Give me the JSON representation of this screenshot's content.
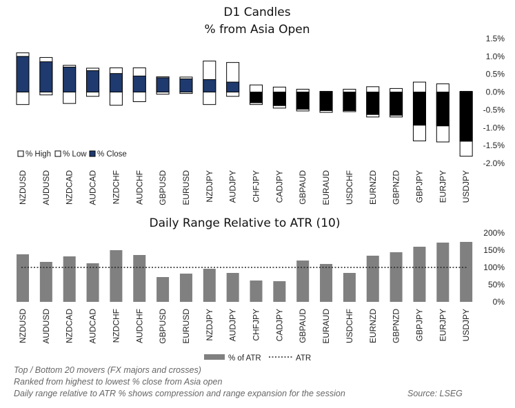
{
  "chart_data": [
    {
      "type": "candlestick",
      "title_lines": [
        "D1 Candles",
        "% from Asia Open"
      ],
      "categories": [
        "NZDUSD",
        "AUDUSD",
        "NZDCAD",
        "AUDCAD",
        "NZDCHF",
        "AUDCHF",
        "GBPUSD",
        "EURUSD",
        "NZDJPY",
        "AUDJPY",
        "CHFJPY",
        "CADJPY",
        "GBPAUD",
        "EURAUD",
        "USDCHF",
        "EURNZD",
        "GBPNZD",
        "GBPJPY",
        "EURJPY",
        "USDJPY"
      ],
      "series": [
        {
          "name": "% High",
          "values": [
            1.1,
            0.97,
            0.75,
            0.67,
            0.68,
            0.68,
            0.43,
            0.42,
            0.87,
            0.83,
            0.2,
            0.14,
            0.08,
            0.02,
            0.08,
            0.15,
            0.1,
            0.28,
            0.23,
            0.02
          ]
        },
        {
          "name": "% Low",
          "values": [
            -0.35,
            -0.08,
            -0.32,
            -0.12,
            -0.37,
            -0.27,
            -0.06,
            -0.04,
            -0.35,
            -0.12,
            -0.35,
            -0.45,
            -0.53,
            -0.57,
            -0.55,
            -0.7,
            -0.7,
            -1.37,
            -1.4,
            -1.8
          ]
        },
        {
          "name": "% Close",
          "values": [
            1.0,
            0.85,
            0.7,
            0.6,
            0.52,
            0.45,
            0.4,
            0.37,
            0.35,
            0.28,
            -0.3,
            -0.38,
            -0.48,
            -0.52,
            -0.52,
            -0.63,
            -0.65,
            -0.93,
            -0.95,
            -1.38
          ]
        }
      ],
      "y_ticks": [
        "1.5%",
        "1.0%",
        "0.5%",
        "0.0%",
        "-0.5%",
        "-1.0%",
        "-1.5%",
        "-2.0%"
      ],
      "ylim": [
        -2.0,
        1.5
      ],
      "legend": [
        "% High",
        "% Low",
        "% Close"
      ],
      "legend_position": "bottom-left",
      "colors": {
        "body": "#1f3a6e",
        "negative_body": "#000000",
        "wick_box": "#ffffff",
        "outline": "#000000"
      }
    },
    {
      "type": "bar",
      "title": "Daily Range Relative to ATR (10)",
      "categories": [
        "NZDUSD",
        "AUDUSD",
        "NZDCAD",
        "AUDCAD",
        "NZDCHF",
        "AUDCHF",
        "GBPUSD",
        "EURUSD",
        "NZDJPY",
        "AUDJPY",
        "CHFJPY",
        "CADJPY",
        "GBPAUD",
        "EURAUD",
        "USDCHF",
        "EURNZD",
        "GBPNZD",
        "GBPJPY",
        "EURJPY",
        "USDJPY"
      ],
      "series": [
        {
          "name": "% of ATR",
          "values": [
            138,
            116,
            132,
            112,
            150,
            136,
            72,
            82,
            96,
            84,
            62,
            60,
            120,
            110,
            84,
            134,
            144,
            160,
            172,
            174
          ]
        }
      ],
      "reference_line": {
        "name": "ATR",
        "value": 100
      },
      "y_ticks": [
        "200%",
        "150%",
        "100%",
        "50%",
        "0%"
      ],
      "ylim": [
        0,
        200
      ],
      "legend": [
        "% of ATR",
        "ATR"
      ],
      "legend_position": "bottom-center",
      "colors": {
        "bar": "#808080",
        "atr_line": "#222222"
      }
    }
  ],
  "footnotes": [
    "Top / Bottom 20 movers (FX majors and crosses)",
    "Ranked from highest to lowest % close from Asia open",
    "Daily range relative to ATR % shows compression and range expansion for the session"
  ],
  "source": "Source: LSEG"
}
